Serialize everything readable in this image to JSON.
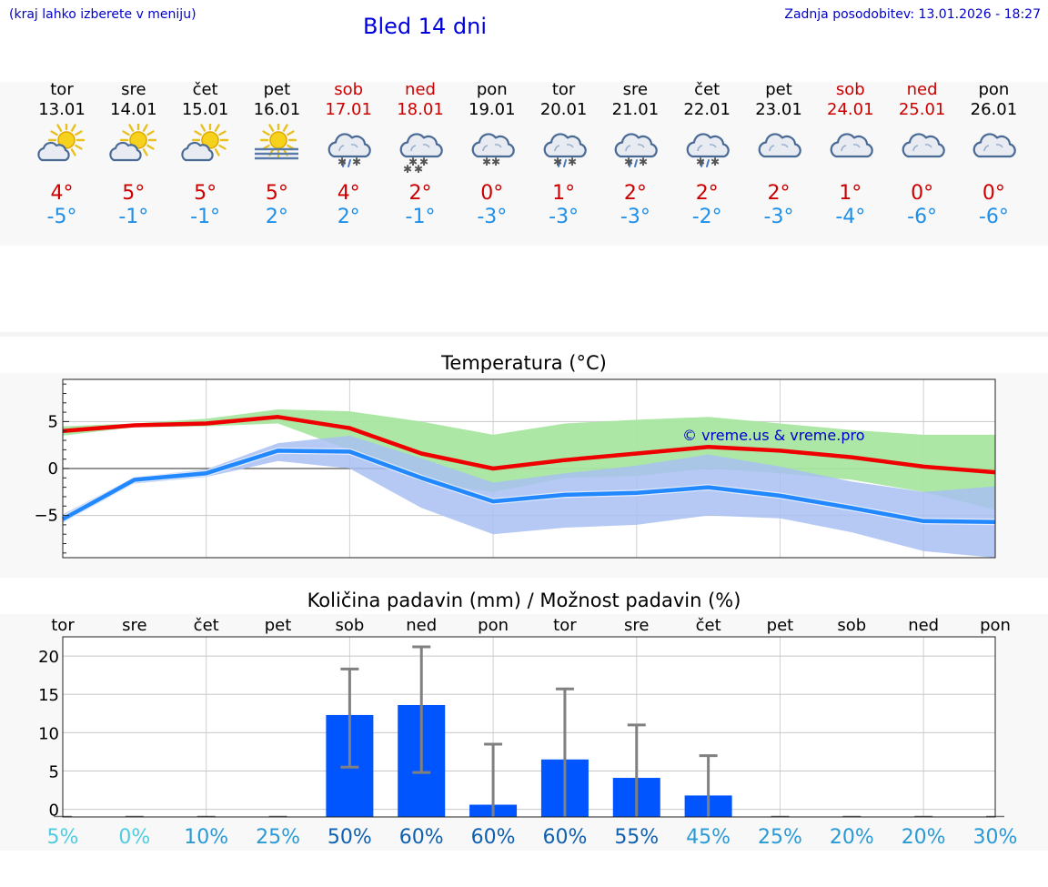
{
  "header": {
    "hint": "(kraj lahko izberete v meniju)",
    "title": "Bled 14 dni",
    "updated": "Zadnja posodobitev: 13.01.2026 - 18:27"
  },
  "days": [
    {
      "name": "tor",
      "date": "13.01",
      "weekend": false,
      "icon": "sun-cloud-icon",
      "max": "4°",
      "min": "-5°"
    },
    {
      "name": "sre",
      "date": "14.01",
      "weekend": false,
      "icon": "sun-cloud-icon",
      "max": "5°",
      "min": "-1°"
    },
    {
      "name": "čet",
      "date": "15.01",
      "weekend": false,
      "icon": "sun-cloud-icon",
      "max": "5°",
      "min": "-1°"
    },
    {
      "name": "pet",
      "date": "16.01",
      "weekend": false,
      "icon": "sun-fog-icon",
      "max": "5°",
      "min": "2°"
    },
    {
      "name": "sob",
      "date": "17.01",
      "weekend": true,
      "icon": "cloud-sleet-icon",
      "max": "4°",
      "min": "2°"
    },
    {
      "name": "ned",
      "date": "18.01",
      "weekend": true,
      "icon": "cloud-snow-icon",
      "max": "2°",
      "min": "-1°"
    },
    {
      "name": "pon",
      "date": "19.01",
      "weekend": false,
      "icon": "cloud-light-snow-icon",
      "max": "0°",
      "min": "-3°"
    },
    {
      "name": "tor",
      "date": "20.01",
      "weekend": false,
      "icon": "cloud-sleet-icon",
      "max": "1°",
      "min": "-3°"
    },
    {
      "name": "sre",
      "date": "21.01",
      "weekend": false,
      "icon": "cloud-sleet-icon",
      "max": "2°",
      "min": "-3°"
    },
    {
      "name": "čet",
      "date": "22.01",
      "weekend": false,
      "icon": "cloud-sleet-icon",
      "max": "2°",
      "min": "-2°"
    },
    {
      "name": "pet",
      "date": "23.01",
      "weekend": false,
      "icon": "cloud-icon",
      "max": "2°",
      "min": "-3°"
    },
    {
      "name": "sob",
      "date": "24.01",
      "weekend": true,
      "icon": "cloud-icon",
      "max": "1°",
      "min": "-4°"
    },
    {
      "name": "ned",
      "date": "25.01",
      "weekend": true,
      "icon": "cloud-icon",
      "max": "0°",
      "min": "-6°"
    },
    {
      "name": "pon",
      "date": "26.01",
      "weekend": false,
      "icon": "cloud-icon",
      "max": "0°",
      "min": "-6°"
    }
  ],
  "colors": {
    "max_line": "#ee0000",
    "min_line": "#2288ff",
    "max_band": "#a8e6a0",
    "min_band": "#a8c0f2",
    "overlap_band": "#7ec4a8",
    "precip_bar": "#0055ff",
    "error_bar": "#808080",
    "watermark": "#0000cc"
  },
  "chart_data": [
    {
      "type": "line",
      "title": "Temperatura (°C)",
      "watermark": "© vreme.us & vreme.pro",
      "ylim": [
        -9.5,
        9.5
      ],
      "yticks": [
        -5,
        0,
        5
      ],
      "ytick_labels": [
        "−5",
        "0",
        "5"
      ],
      "x": [
        0,
        1,
        2,
        3,
        4,
        5,
        6,
        7,
        8,
        9,
        10,
        11,
        12,
        13
      ],
      "series": [
        {
          "name": "max",
          "values": [
            4.0,
            4.6,
            4.8,
            5.5,
            4.3,
            1.6,
            0.0,
            0.9,
            1.6,
            2.3,
            1.9,
            1.2,
            0.2,
            -0.4
          ]
        },
        {
          "name": "min",
          "values": [
            -5.4,
            -1.2,
            -0.5,
            1.9,
            1.8,
            -1.0,
            -3.5,
            -2.8,
            -2.6,
            -2.0,
            -2.9,
            -4.2,
            -5.6,
            -5.7
          ]
        }
      ],
      "bands": [
        {
          "name": "max_range",
          "low": [
            3.5,
            4.4,
            4.5,
            4.8,
            2.0,
            -1.5,
            -2.5,
            -1.0,
            -0.8,
            0.0,
            -0.5,
            -1.2,
            -2.5,
            -4.4
          ],
          "high": [
            4.5,
            4.8,
            5.3,
            6.3,
            6.1,
            5.0,
            3.6,
            4.8,
            5.2,
            5.5,
            4.8,
            4.1,
            3.6,
            3.6
          ]
        },
        {
          "name": "min_range",
          "low": [
            -5.8,
            -1.6,
            -0.9,
            0.8,
            0.0,
            -4.2,
            -7.0,
            -6.3,
            -6.0,
            -5.0,
            -5.3,
            -6.8,
            -8.8,
            -9.5
          ],
          "high": [
            -4.9,
            -0.9,
            -0.1,
            2.7,
            3.5,
            1.1,
            -1.5,
            -0.5,
            0.3,
            1.5,
            0.2,
            -1.4,
            -2.5,
            -1.9
          ]
        }
      ]
    },
    {
      "type": "bar",
      "title": "Količina padavin (mm) / Možnost padavin (%)",
      "ylim": [
        -1,
        22.5
      ],
      "yticks": [
        0,
        5,
        10,
        15,
        20
      ],
      "ytick_labels": [
        "0",
        "5",
        "10",
        "15",
        "20"
      ],
      "categories": [
        "tor",
        "sre",
        "čet",
        "pet",
        "sob",
        "ned",
        "pon",
        "tor",
        "sre",
        "čet",
        "pet",
        "sob",
        "ned",
        "pon"
      ],
      "values": [
        0,
        0,
        0,
        0,
        12.3,
        13.6,
        0.6,
        6.5,
        4.1,
        1.8,
        0,
        0,
        0,
        0
      ],
      "error_low": [
        0,
        0,
        0,
        0,
        5.5,
        4.8,
        0,
        0,
        0,
        0,
        0,
        0,
        0,
        0
      ],
      "error_high": [
        0,
        0,
        0,
        0,
        18.3,
        21.2,
        8.5,
        15.7,
        11.0,
        7.0,
        0,
        0,
        0,
        0
      ],
      "chance": [
        "5%",
        "0%",
        "10%",
        "25%",
        "50%",
        "60%",
        "60%",
        "60%",
        "55%",
        "45%",
        "25%",
        "20%",
        "20%",
        "30%"
      ],
      "chance_colors": [
        "#50cce0",
        "#50cce0",
        "#2a9ad6",
        "#2a9ad6",
        "#1060b0",
        "#1060b0",
        "#1060b0",
        "#1060b0",
        "#1060b0",
        "#2a9ad6",
        "#2a9ad6",
        "#2a9ad6",
        "#2a9ad6",
        "#2a9ad6"
      ]
    }
  ]
}
